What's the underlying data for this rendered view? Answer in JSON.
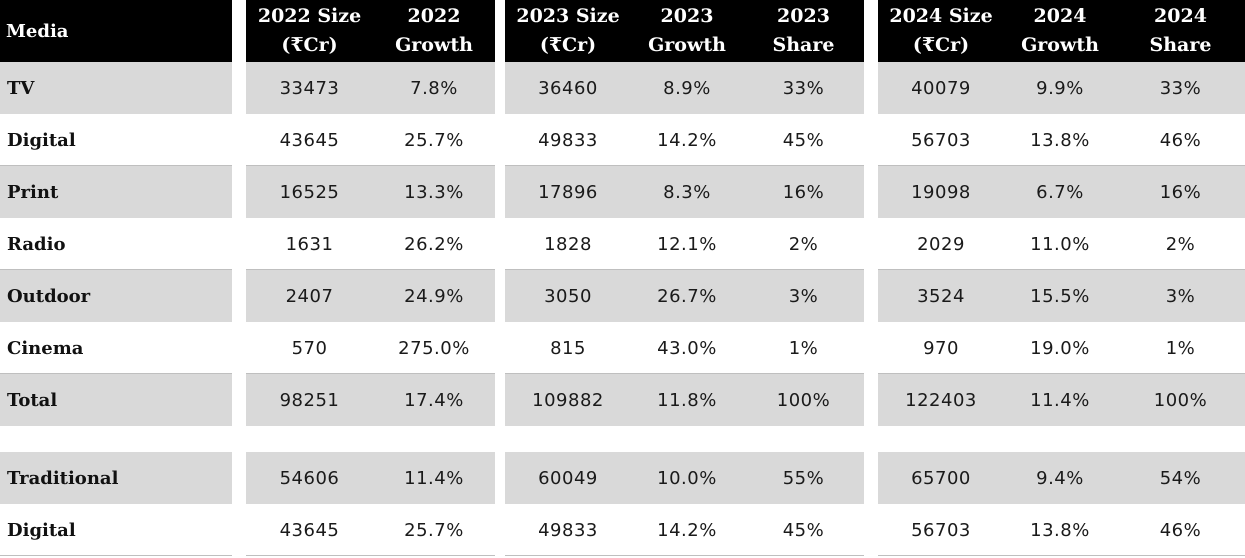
{
  "chart_data": {
    "type": "table",
    "header_first": "Media",
    "columns": [
      {
        "line1": "2022 Size",
        "line2": "(₹Cr)"
      },
      {
        "line1": "2022",
        "line2": "Growth"
      },
      {
        "line1": "2023 Size",
        "line2": "(₹Cr)"
      },
      {
        "line1": "2023",
        "line2": "Growth"
      },
      {
        "line1": "2023",
        "line2": "Share"
      },
      {
        "line1": "2024 Size",
        "line2": "(₹Cr)"
      },
      {
        "line1": "2024",
        "line2": "Growth"
      },
      {
        "line1": "2024",
        "line2": "Share"
      }
    ],
    "rows": [
      {
        "label": "TV",
        "values": [
          "33473",
          "7.8%",
          "36460",
          "8.9%",
          "33%",
          "40079",
          "9.9%",
          "33%"
        ]
      },
      {
        "label": "Digital",
        "values": [
          "43645",
          "25.7%",
          "49833",
          "14.2%",
          "45%",
          "56703",
          "13.8%",
          "46%"
        ]
      },
      {
        "label": "Print",
        "values": [
          "16525",
          "13.3%",
          "17896",
          "8.3%",
          "16%",
          "19098",
          "6.7%",
          "16%"
        ]
      },
      {
        "label": "Radio",
        "values": [
          "1631",
          "26.2%",
          "1828",
          "12.1%",
          "2%",
          "2029",
          "11.0%",
          "2%"
        ]
      },
      {
        "label": "Outdoor",
        "values": [
          "2407",
          "24.9%",
          "3050",
          "26.7%",
          "3%",
          "3524",
          "15.5%",
          "3%"
        ]
      },
      {
        "label": "Cinema",
        "values": [
          "570",
          "275.0%",
          "815",
          "43.0%",
          "1%",
          "970",
          "19.0%",
          "1%"
        ]
      },
      {
        "label": "Total",
        "values": [
          "98251",
          "17.4%",
          "109882",
          "11.8%",
          "100%",
          "122403",
          "11.4%",
          "100%"
        ]
      },
      {
        "label": "Traditional",
        "values": [
          "54606",
          "11.4%",
          "60049",
          "10.0%",
          "55%",
          "65700",
          "9.4%",
          "54%"
        ]
      },
      {
        "label": "Digital",
        "values": [
          "43645",
          "25.7%",
          "49833",
          "14.2%",
          "45%",
          "56703",
          "13.8%",
          "46%"
        ]
      }
    ],
    "shaded_rows": [
      0,
      2,
      4,
      6,
      7
    ],
    "colors": {
      "header_bg": "#000000",
      "header_text": "#ffffff",
      "shade": "#d9d9d9",
      "text": "#1a1a1a"
    }
  }
}
